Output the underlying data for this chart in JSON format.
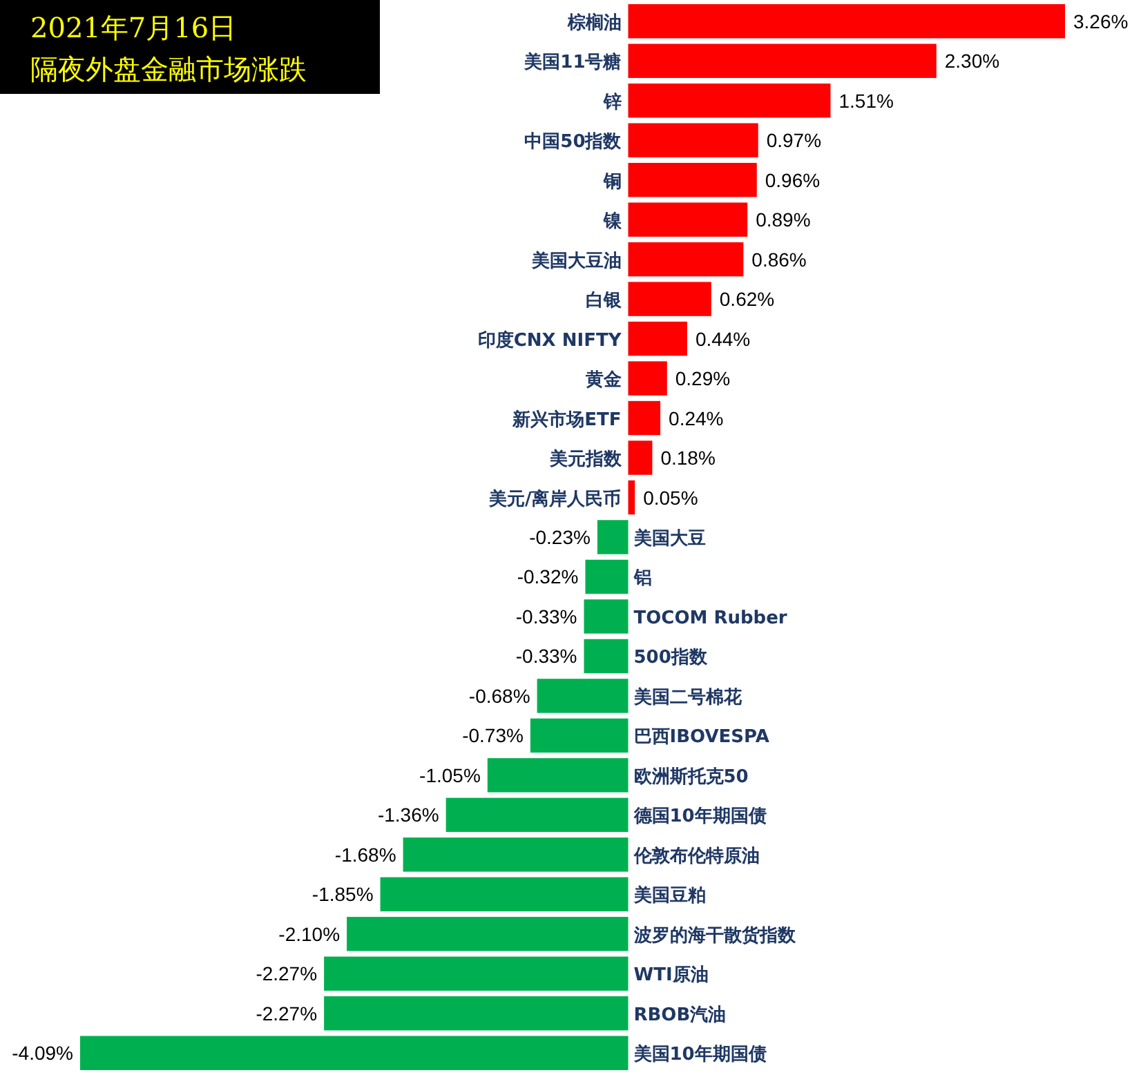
{
  "chart_data": {
    "type": "bar",
    "orientation": "horizontal",
    "title": "2021年7月16日",
    "subtitle": "隔夜外盘金融市场涨跌",
    "categories": [
      "棕榈油",
      "美国11号糖",
      "锌",
      "中国50指数",
      "铜",
      "镍",
      "美国大豆油",
      "白银",
      "印度CNX NIFTY",
      "黄金",
      "新兴市场ETF",
      "美元指数",
      "美元/离岸人民币",
      "美国大豆",
      "铝",
      "TOCOM Rubber",
      "500指数",
      "美国二号棉花",
      "巴西IBOVESPA",
      "欧洲斯托克50",
      "德国10年期国债",
      "伦敦布伦特原油",
      "美国豆粕",
      "波罗的海干散货指数",
      "WTI原油",
      "RBOB汽油",
      "美国10年期国债"
    ],
    "values": [
      3.26,
      2.3,
      1.51,
      0.97,
      0.96,
      0.89,
      0.86,
      0.62,
      0.44,
      0.29,
      0.24,
      0.18,
      0.05,
      -0.23,
      -0.32,
      -0.33,
      -0.33,
      -0.68,
      -0.73,
      -1.05,
      -1.36,
      -1.68,
      -1.85,
      -2.1,
      -2.27,
      -2.27,
      -4.09
    ],
    "value_labels": [
      "3.26%",
      "2.30%",
      "1.51%",
      "0.97%",
      "0.96%",
      "0.89%",
      "0.86%",
      "0.62%",
      "0.44%",
      "0.29%",
      "0.24%",
      "0.18%",
      "0.05%",
      "-0.23%",
      "-0.32%",
      "-0.33%",
      "-0.33%",
      "-0.68%",
      "-0.73%",
      "-1.05%",
      "-1.36%",
      "-1.68%",
      "-1.85%",
      "-2.10%",
      "-2.27%",
      "-2.27%",
      "-4.09%"
    ],
    "colors": [
      "#ff0000",
      "#ff0000",
      "#ff0000",
      "#ff0000",
      "#ff0000",
      "#ff0000",
      "#ff0000",
      "#ff0000",
      "#ff0000",
      "#ff0000",
      "#ff0000",
      "#ff0000",
      "#ff0000",
      "#00b050",
      "#00b050",
      "#00b050",
      "#00b050",
      "#00b050",
      "#00b050",
      "#00b050",
      "#00b050",
      "#00b050",
      "#00b050",
      "#00b050",
      "#00b050",
      "#00b050",
      "#00b050"
    ]
  }
}
